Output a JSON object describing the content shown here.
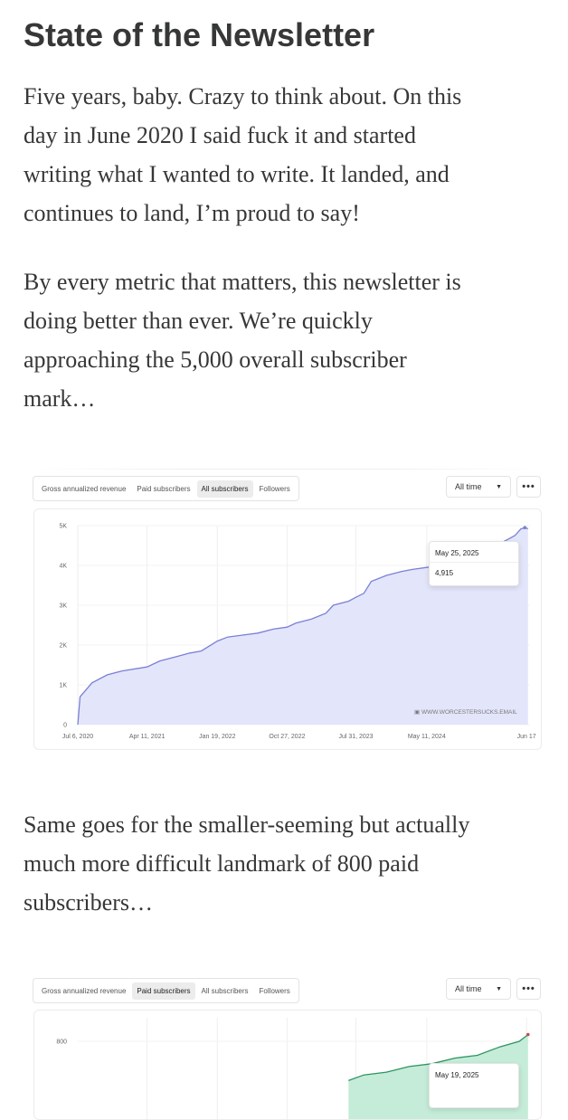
{
  "article": {
    "title": "State of the Newsletter",
    "paragraph1": [
      "Five years, baby. Crazy to think about. On this",
      "day in June 2020 I said fuck it and started",
      "writing what I wanted to write. It landed, and",
      "continues to land, I’m proud to say!"
    ],
    "paragraph2": [
      "By every metric that matters, this newsletter is",
      "doing better than ever. We’re quickly",
      "approaching the 5,000 overall subscriber",
      "mark…"
    ],
    "paragraph3": [
      "Same goes for the smaller-seeming but actually",
      "much more difficult landmark of 800 paid",
      "subscribers…"
    ]
  },
  "toolbar1": {
    "tabs": [
      "Gross annualized revenue",
      "Paid subscribers",
      "All subscribers",
      "Followers"
    ],
    "active_tab": "All subscribers",
    "range": "All time",
    "more_label": "•••"
  },
  "toolbar2": {
    "tabs": [
      "Gross annualized revenue",
      "Paid subscribers",
      "All subscribers",
      "Followers"
    ],
    "active_tab": "Paid subscribers",
    "range": "All time",
    "more_label": "•••"
  },
  "watermark": "WWW.WORCESTERSUCKS.EMAIL",
  "chart_data": [
    {
      "type": "area",
      "series": [
        {
          "x": [
            "2020-07-06",
            "2020-07-15",
            "2020-09-01",
            "2020-11-01",
            "2021-01-01",
            "2021-04-11",
            "2021-06-01",
            "2021-08-01",
            "2021-10-01",
            "2021-11-15",
            "2022-01-19",
            "2022-03-01",
            "2022-05-01",
            "2022-07-01",
            "2022-09-01",
            "2022-10-27",
            "2022-12-01",
            "2023-02-01",
            "2023-04-01",
            "2023-05-01",
            "2023-07-01",
            "2023-07-31",
            "2023-09-01",
            "2023-10-01",
            "2023-12-01",
            "2024-02-01",
            "2024-03-15",
            "2024-05-11",
            "2024-07-01",
            "2024-09-01",
            "2024-11-01",
            "2025-01-01",
            "2025-02-01",
            "2025-03-01",
            "2025-04-01",
            "2025-05-01",
            "2025-05-25",
            "2025-06-10",
            "2025-06-23"
          ],
          "y": [
            0,
            700,
            1050,
            1250,
            1350,
            1450,
            1600,
            1700,
            1800,
            1850,
            2100,
            2200,
            2250,
            2300,
            2400,
            2450,
            2550,
            2650,
            2800,
            3000,
            3100,
            3200,
            3300,
            3600,
            3750,
            3850,
            3900,
            3950,
            4000,
            4100,
            4200,
            4350,
            4450,
            4550,
            4650,
            4750,
            4915,
            4950,
            4920
          ]
        }
      ],
      "xticks": [
        "Jul 6, 2020",
        "Apr 11, 2021",
        "Jan 19, 2022",
        "Oct 27, 2022",
        "Jul 31, 2023",
        "May 11, 2024",
        "Jun 17"
      ],
      "yticks": [
        "0",
        "1K",
        "2K",
        "3K",
        "4K",
        "5K"
      ],
      "ylim": [
        0,
        5000
      ],
      "fill_color": "#e3e5fb",
      "line_color": "#7b80d4",
      "tooltip": {
        "date": "May 25, 2025",
        "value": "4,915"
      }
    },
    {
      "type": "area",
      "series": [
        {
          "x": [
            "2023-07-01",
            "2023-09-01",
            "2023-12-01",
            "2024-03-01",
            "2024-06-01",
            "2024-09-01",
            "2024-12-01",
            "2025-03-01",
            "2025-05-19",
            "2025-06-23"
          ],
          "y": [
            730,
            740,
            745,
            755,
            760,
            770,
            775,
            790,
            800,
            812
          ]
        }
      ],
      "yticks": [
        "800"
      ],
      "fill_color": "#c5ecd8",
      "line_color": "#2e9460",
      "tooltip": {
        "date": "May 19, 2025"
      }
    }
  ]
}
